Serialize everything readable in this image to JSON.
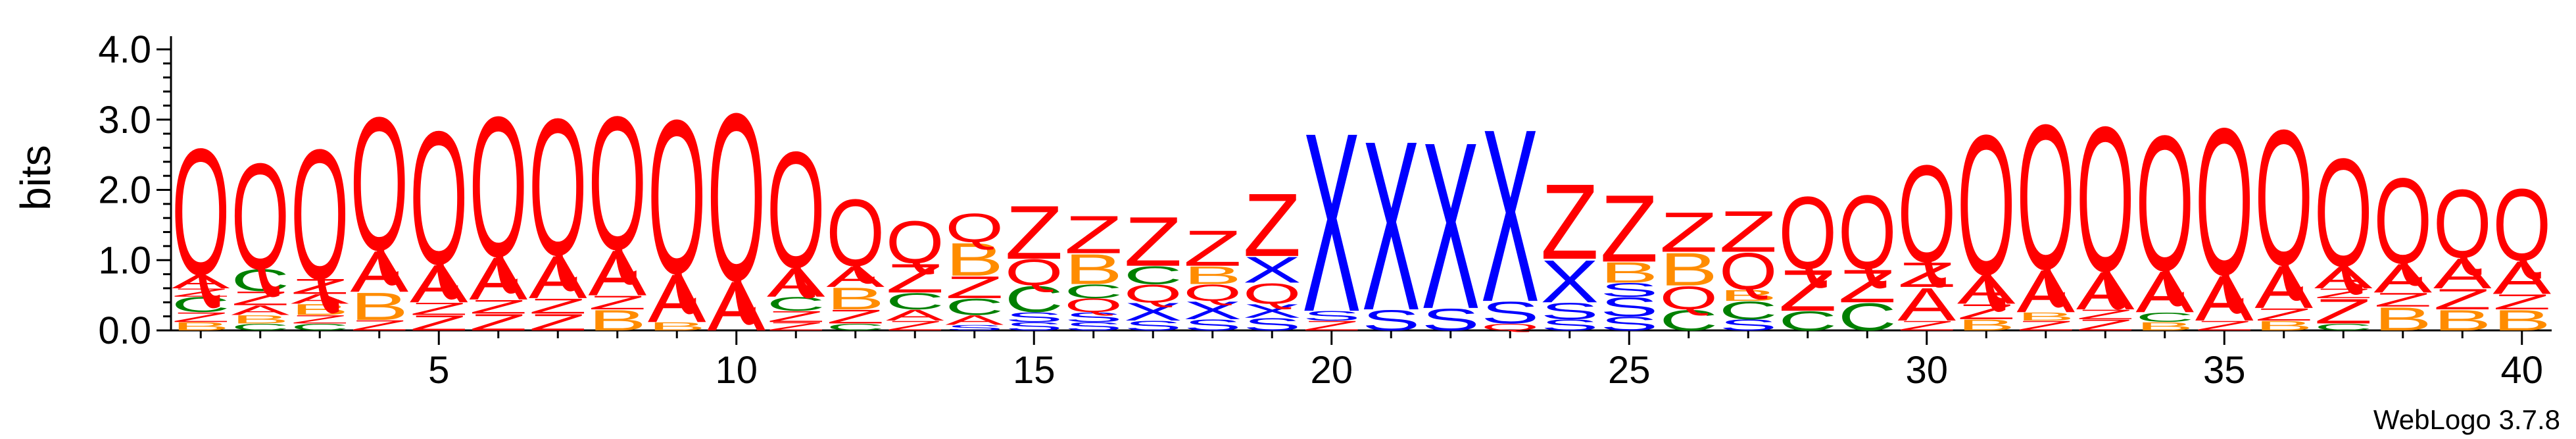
{
  "chart_data": {
    "type": "sequence-logo",
    "ylabel": "bits",
    "ylim": [
      0,
      4.0
    ],
    "yticks": [
      "0.0",
      "1.0",
      "2.0",
      "3.0",
      "4.0"
    ],
    "xticks": [
      5,
      10,
      15,
      20,
      25,
      30,
      35,
      40
    ],
    "positions": 40,
    "credit": "WebLogo 3.7.8",
    "colors": {
      "Q": "#ff0000",
      "Z": "#ff0000",
      "X": "#0000ff",
      "S": "#0000ff",
      "A": "#ff0000",
      "C": "#008000",
      "B": "#ff8c00"
    },
    "columns": [
      {
        "pos": 1,
        "stack": [
          [
            "B",
            0.12
          ],
          [
            "Z",
            0.14
          ],
          [
            "C",
            0.22
          ],
          [
            "Z",
            0.12
          ],
          [
            "A",
            0.2
          ],
          [
            "Q",
            1.85
          ]
        ]
      },
      {
        "pos": 2,
        "stack": [
          [
            "C",
            0.1
          ],
          [
            "B",
            0.12
          ],
          [
            "A",
            0.14
          ],
          [
            "Z",
            0.2
          ],
          [
            "C",
            0.32
          ],
          [
            "Q",
            1.55
          ]
        ]
      },
      {
        "pos": 3,
        "stack": [
          [
            "C",
            0.1
          ],
          [
            "Z",
            0.12
          ],
          [
            "B",
            0.16
          ],
          [
            "A",
            0.14
          ],
          [
            "Z",
            0.22
          ],
          [
            "Q",
            1.9
          ]
        ]
      },
      {
        "pos": 4,
        "stack": [
          [
            "Z",
            0.15
          ],
          [
            "B",
            0.4
          ],
          [
            "A",
            0.6
          ],
          [
            "Q",
            1.95
          ]
        ]
      },
      {
        "pos": 5,
        "stack": [
          [
            "Z",
            0.22
          ],
          [
            "Z",
            0.18
          ],
          [
            "A",
            0.55
          ],
          [
            "Q",
            1.95
          ]
        ]
      },
      {
        "pos": 6,
        "stack": [
          [
            "Z",
            0.24
          ],
          [
            "Z",
            0.2
          ],
          [
            "A",
            0.62
          ],
          [
            "Q",
            2.05
          ]
        ]
      },
      {
        "pos": 7,
        "stack": [
          [
            "Z",
            0.24
          ],
          [
            "Z",
            0.22
          ],
          [
            "A",
            0.62
          ],
          [
            "Q",
            2.0
          ]
        ]
      },
      {
        "pos": 8,
        "stack": [
          [
            "B",
            0.3
          ],
          [
            "Z",
            0.2
          ],
          [
            "A",
            0.66
          ],
          [
            "Q",
            1.95
          ]
        ]
      },
      {
        "pos": 9,
        "stack": [
          [
            "B",
            0.12
          ],
          [
            "A",
            0.7
          ],
          [
            "Q",
            2.25
          ]
        ]
      },
      {
        "pos": 10,
        "stack": [
          [
            "A",
            0.72
          ],
          [
            "Q",
            2.45
          ]
        ]
      },
      {
        "pos": 11,
        "stack": [
          [
            "Z",
            0.12
          ],
          [
            "Z",
            0.16
          ],
          [
            "C",
            0.2
          ],
          [
            "A",
            0.42
          ],
          [
            "Q",
            1.7
          ]
        ]
      },
      {
        "pos": 12,
        "stack": [
          [
            "C",
            0.1
          ],
          [
            "Z",
            0.2
          ],
          [
            "B",
            0.32
          ],
          [
            "A",
            0.3
          ],
          [
            "Q",
            0.98
          ]
        ]
      },
      {
        "pos": 13,
        "stack": [
          [
            "Z",
            0.14
          ],
          [
            "A",
            0.16
          ],
          [
            "C",
            0.24
          ],
          [
            "Z",
            0.42
          ],
          [
            "Q",
            0.62
          ]
        ]
      },
      {
        "pos": 14,
        "stack": [
          [
            "S",
            0.08
          ],
          [
            "A",
            0.14
          ],
          [
            "C",
            0.24
          ],
          [
            "Z",
            0.32
          ],
          [
            "B",
            0.48
          ],
          [
            "Q",
            0.42
          ]
        ]
      },
      {
        "pos": 15,
        "stack": [
          [
            "S",
            0.12
          ],
          [
            "S",
            0.14
          ],
          [
            "C",
            0.38
          ],
          [
            "Q",
            0.38
          ],
          [
            "Z",
            0.78
          ]
        ]
      },
      {
        "pos": 16,
        "stack": [
          [
            "S",
            0.12
          ],
          [
            "S",
            0.14
          ],
          [
            "Q",
            0.2
          ],
          [
            "C",
            0.2
          ],
          [
            "B",
            0.44
          ],
          [
            "Z",
            0.55
          ]
        ]
      },
      {
        "pos": 17,
        "stack": [
          [
            "S",
            0.14
          ],
          [
            "X",
            0.26
          ],
          [
            "Q",
            0.26
          ],
          [
            "C",
            0.26
          ],
          [
            "Z",
            0.72
          ]
        ]
      },
      {
        "pos": 18,
        "stack": [
          [
            "S",
            0.16
          ],
          [
            "X",
            0.26
          ],
          [
            "Q",
            0.24
          ],
          [
            "B",
            0.26
          ],
          [
            "Z",
            0.52
          ]
        ]
      },
      {
        "pos": 19,
        "stack": [
          [
            "S",
            0.18
          ],
          [
            "X",
            0.2
          ],
          [
            "Q",
            0.3
          ],
          [
            "X",
            0.38
          ],
          [
            "Z",
            0.92
          ]
        ]
      },
      {
        "pos": 20,
        "stack": [
          [
            "Z",
            0.14
          ],
          [
            "S",
            0.14
          ],
          [
            "X",
            2.62
          ]
        ]
      },
      {
        "pos": 21,
        "stack": [
          [
            "S",
            0.3
          ],
          [
            "X",
            2.48
          ]
        ]
      },
      {
        "pos": 22,
        "stack": [
          [
            "S",
            0.32
          ],
          [
            "X",
            2.44
          ]
        ]
      },
      {
        "pos": 23,
        "stack": [
          [
            "Q",
            0.1
          ],
          [
            "S",
            0.32
          ],
          [
            "X",
            2.53
          ]
        ]
      },
      {
        "pos": 24,
        "stack": [
          [
            "S",
            0.16
          ],
          [
            "S",
            0.24
          ],
          [
            "X",
            0.62
          ],
          [
            "Z",
            1.1
          ]
        ]
      },
      {
        "pos": 25,
        "stack": [
          [
            "S",
            0.2
          ],
          [
            "S",
            0.28
          ],
          [
            "S",
            0.2
          ],
          [
            "B",
            0.3
          ],
          [
            "Z",
            0.98
          ]
        ]
      },
      {
        "pos": 26,
        "stack": [
          [
            "C",
            0.3
          ],
          [
            "Q",
            0.34
          ],
          [
            "B",
            0.48
          ],
          [
            "Z",
            0.58
          ]
        ]
      },
      {
        "pos": 27,
        "stack": [
          [
            "S",
            0.16
          ],
          [
            "C",
            0.26
          ],
          [
            "B",
            0.16
          ],
          [
            "Q",
            0.54
          ],
          [
            "Z",
            0.6
          ]
        ]
      },
      {
        "pos": 28,
        "stack": [
          [
            "C",
            0.28
          ],
          [
            "Z",
            0.6
          ],
          [
            "Q",
            1.06
          ]
        ]
      },
      {
        "pos": 29,
        "stack": [
          [
            "C",
            0.4
          ],
          [
            "Z",
            0.48
          ],
          [
            "Q",
            1.08
          ]
        ]
      },
      {
        "pos": 30,
        "stack": [
          [
            "Z",
            0.14
          ],
          [
            "A",
            0.48
          ],
          [
            "Z",
            0.36
          ],
          [
            "Q",
            1.42
          ]
        ]
      },
      {
        "pos": 31,
        "stack": [
          [
            "B",
            0.16
          ],
          [
            "Z",
            0.22
          ],
          [
            "A",
            0.42
          ],
          [
            "Q",
            2.05
          ]
        ]
      },
      {
        "pos": 32,
        "stack": [
          [
            "Z",
            0.14
          ],
          [
            "B",
            0.12
          ],
          [
            "A",
            0.62
          ],
          [
            "Q",
            2.12
          ]
        ]
      },
      {
        "pos": 33,
        "stack": [
          [
            "Z",
            0.16
          ],
          [
            "Z",
            0.14
          ],
          [
            "A",
            0.55
          ],
          [
            "Q",
            2.12
          ]
        ]
      },
      {
        "pos": 34,
        "stack": [
          [
            "B",
            0.12
          ],
          [
            "C",
            0.14
          ],
          [
            "A",
            0.6
          ],
          [
            "Q",
            1.98
          ]
        ]
      },
      {
        "pos": 35,
        "stack": [
          [
            "Z",
            0.14
          ],
          [
            "A",
            0.66
          ],
          [
            "Q",
            2.15
          ]
        ]
      },
      {
        "pos": 36,
        "stack": [
          [
            "B",
            0.14
          ],
          [
            "Z",
            0.18
          ],
          [
            "A",
            0.62
          ],
          [
            "Q",
            1.98
          ]
        ]
      },
      {
        "pos": 37,
        "stack": [
          [
            "C",
            0.1
          ],
          [
            "Z",
            0.36
          ],
          [
            "Z",
            0.14
          ],
          [
            "A",
            0.32
          ],
          [
            "Q",
            1.58
          ]
        ]
      },
      {
        "pos": 38,
        "stack": [
          [
            "B",
            0.34
          ],
          [
            "Z",
            0.2
          ],
          [
            "A",
            0.42
          ],
          [
            "Q",
            1.25
          ]
        ]
      },
      {
        "pos": 39,
        "stack": [
          [
            "B",
            0.3
          ],
          [
            "Z",
            0.3
          ],
          [
            "A",
            0.44
          ],
          [
            "Q",
            1.0
          ]
        ]
      },
      {
        "pos": 40,
        "stack": [
          [
            "B",
            0.3
          ],
          [
            "Z",
            0.22
          ],
          [
            "A",
            0.48
          ],
          [
            "Q",
            1.05
          ]
        ]
      }
    ]
  }
}
